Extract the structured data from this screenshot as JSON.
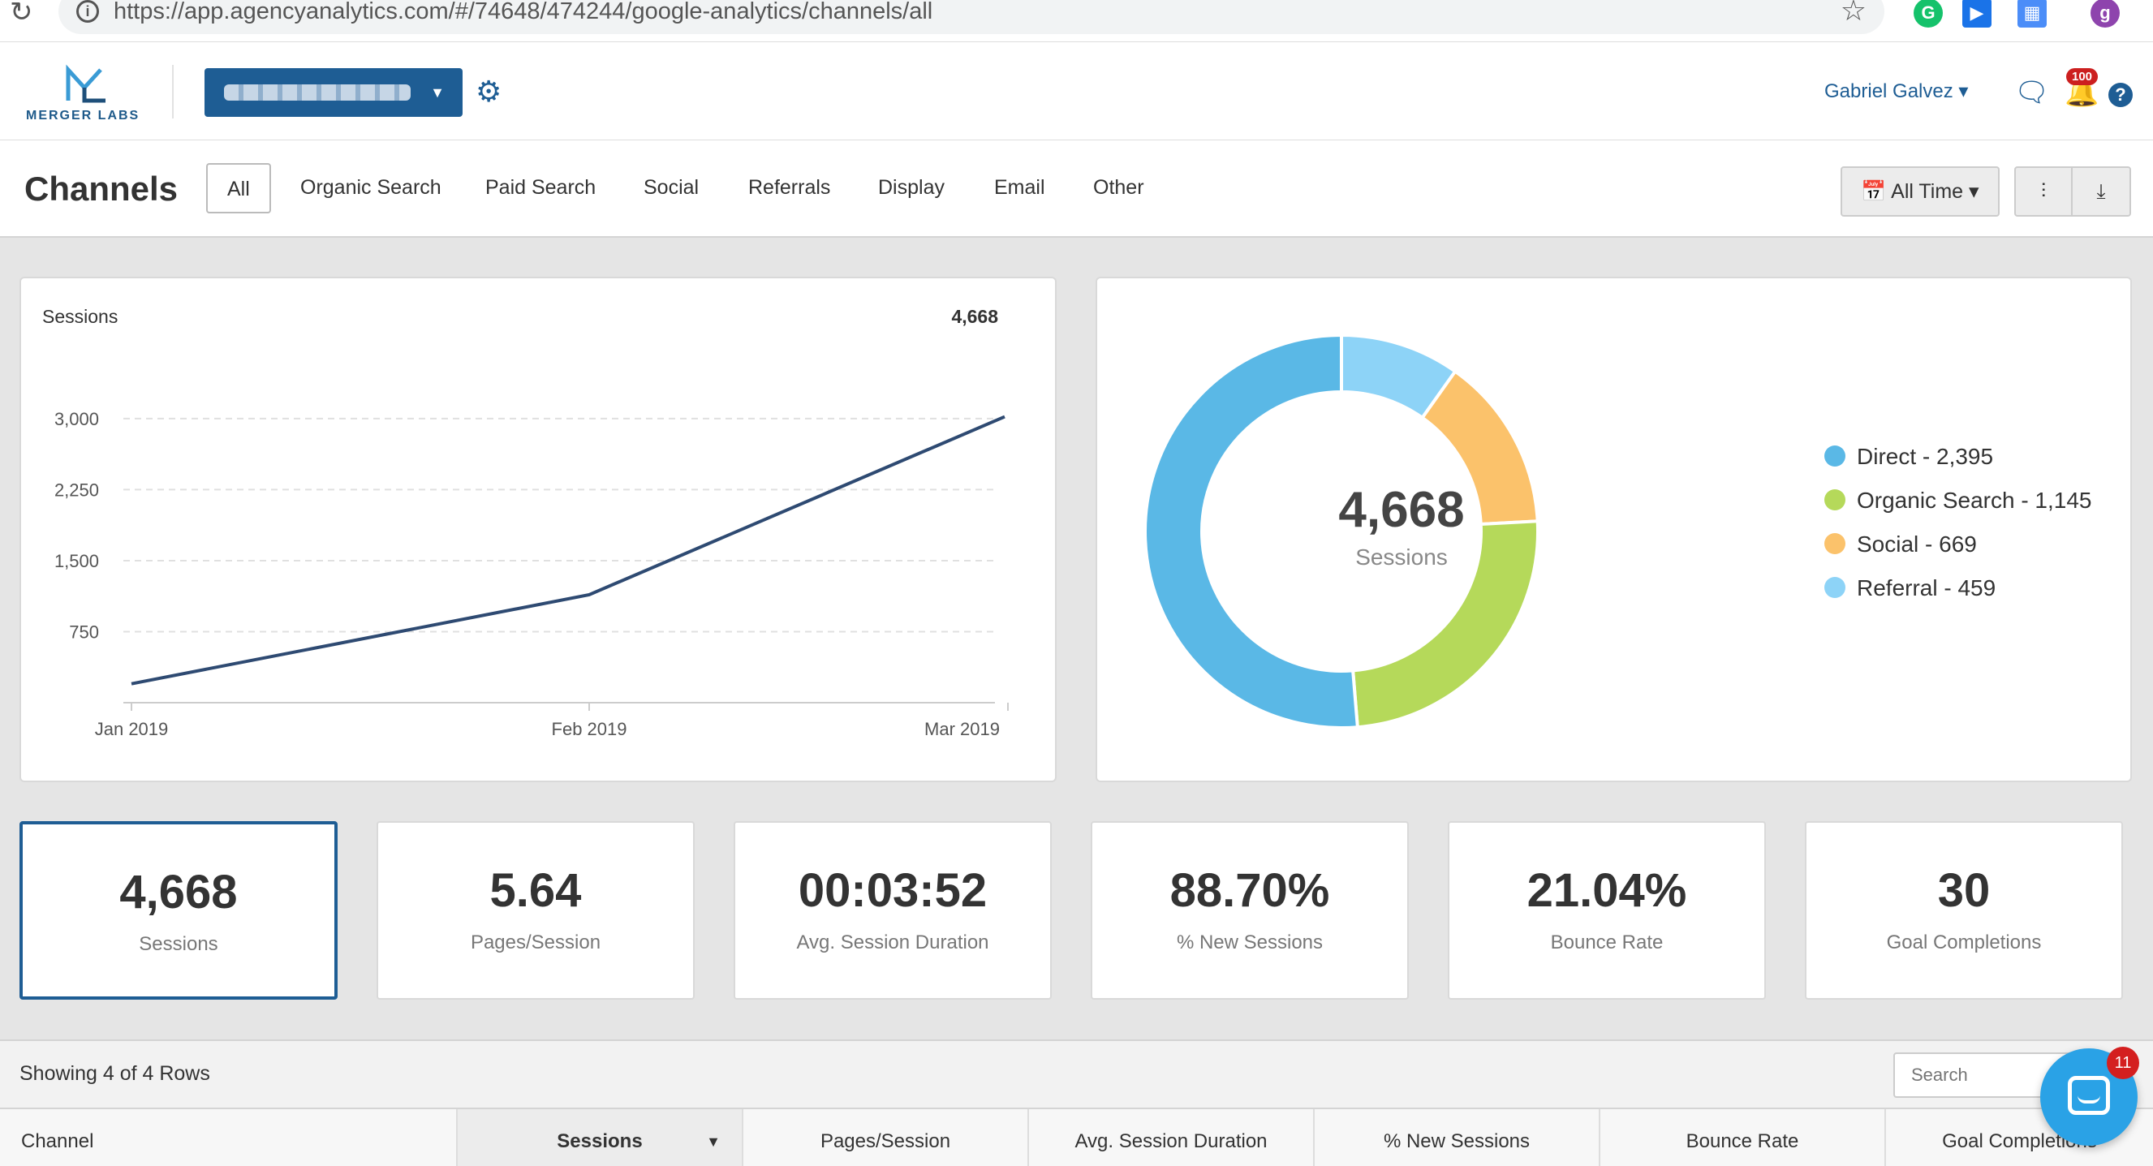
{
  "browser": {
    "url": "https://app.agencyanalytics.com/#/74648/474244/google-analytics/channels/all",
    "reload_icon": "reload-icon",
    "info_icon": "info-icon",
    "star_icon": "star-icon",
    "ext_profile_letter": "g"
  },
  "header": {
    "logo_text": "MERGER LABS",
    "user_name": "Gabriel Galvez",
    "notification_count": "100",
    "accent": "#1e5d94"
  },
  "tabs_bar": {
    "title": "Channels",
    "tabs": [
      "All",
      "Organic Search",
      "Paid Search",
      "Social",
      "Referrals",
      "Display",
      "Email",
      "Other"
    ],
    "active_tab": "All",
    "date_range": "All Time"
  },
  "line_chart": {
    "title": "Sessions",
    "total": "4,668"
  },
  "donut": {
    "center_value": "4,668",
    "center_label": "Sessions",
    "legend": [
      {
        "label": "Direct - 2,395",
        "color": "#5ab8e6"
      },
      {
        "label": "Organic Search - 1,145",
        "color": "#b5d95a"
      },
      {
        "label": "Social - 669",
        "color": "#fbc26b"
      },
      {
        "label": "Referral - 459",
        "color": "#8dd3f7"
      }
    ]
  },
  "chart_data": [
    {
      "type": "line",
      "title": "Sessions",
      "x": [
        "Jan 2019",
        "Feb 2019",
        "Mar 2019"
      ],
      "series": [
        {
          "values": [
            200,
            1140,
            3020
          ]
        }
      ],
      "ylim": [
        0,
        3000
      ],
      "yticks": [
        750,
        1500,
        2250,
        3000
      ],
      "ytick_labels": [
        "750",
        "1,500",
        "2,250",
        "3,000"
      ],
      "grid": true,
      "color": "#2e4a72"
    },
    {
      "type": "pie",
      "variant": "donut",
      "labels": [
        "Direct",
        "Organic Search",
        "Social",
        "Referral"
      ],
      "values": [
        2395,
        1145,
        669,
        459
      ],
      "colors": [
        "#5ab8e6",
        "#b5d95a",
        "#fbc26b",
        "#8dd3f7"
      ],
      "legend": "right"
    }
  ],
  "kpis": [
    {
      "value": "4,668",
      "label": "Sessions"
    },
    {
      "value": "5.64",
      "label": "Pages/Session"
    },
    {
      "value": "00:03:52",
      "label": "Avg. Session Duration"
    },
    {
      "value": "88.70%",
      "label": "% New Sessions"
    },
    {
      "value": "21.04%",
      "label": "Bounce Rate"
    },
    {
      "value": "30",
      "label": "Goal Completions"
    }
  ],
  "table": {
    "rows_info": "Showing 4 of 4 Rows",
    "search_placeholder": "Search",
    "columns": [
      "Channel",
      "Sessions",
      "Pages/Session",
      "Avg. Session Duration",
      "% New Sessions",
      "Bounce Rate",
      "Goal Completions"
    ],
    "sorted_column": "Sessions"
  },
  "chat": {
    "badge": "11"
  }
}
